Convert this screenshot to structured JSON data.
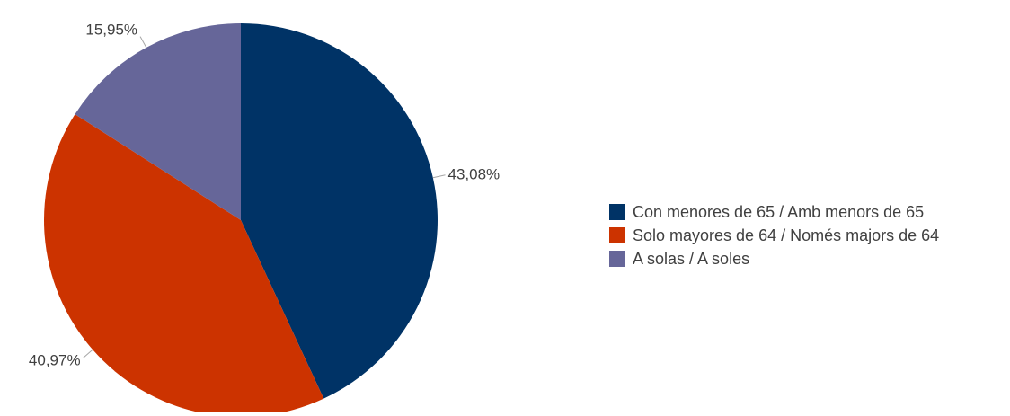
{
  "chart_data": {
    "type": "pie",
    "title": "",
    "legend_position": "right",
    "start_angle_deg": 0,
    "direction": "clockwise",
    "slices": [
      {
        "label": "Con menores de 65 / Amb menors de 65",
        "value": 43.08,
        "value_label": "43,08%",
        "color": "#003366"
      },
      {
        "label": "Solo mayores de 64 / Només majors de 64",
        "value": 40.97,
        "value_label": "40,97%",
        "color": "#CC3300"
      },
      {
        "label": "A solas / A soles",
        "value": 15.95,
        "value_label": "15,95%",
        "color": "#666699"
      }
    ]
  }
}
